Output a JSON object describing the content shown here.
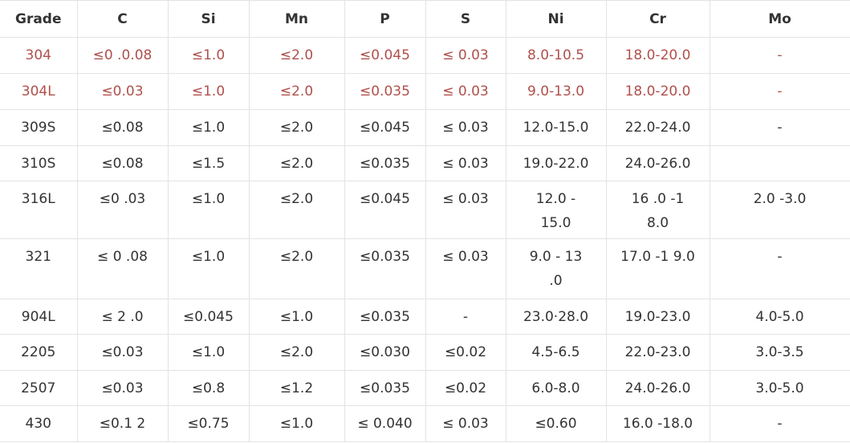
{
  "table": {
    "header": [
      "Grade",
      "C",
      "Si",
      "Mn",
      "P",
      "S",
      "Ni",
      "Cr",
      "Mo"
    ],
    "rows": [
      [
        "304",
        "≤0 .0.08",
        "≤1.0",
        "≤2.0",
        "≤0.045",
        "≤ 0.03",
        "8.0-10.5",
        "18.0-20.0",
        "-"
      ],
      [
        "304L",
        "≤0.03",
        "≤1.0",
        "≤2.0",
        "≤0.035",
        "≤ 0.03",
        "9.0-13.0",
        "18.0-20.0",
        "-"
      ],
      [
        "309S",
        "≤0.08",
        "≤1.0",
        "≤2.0",
        "≤0.045",
        "≤ 0.03",
        "12.0-15.0",
        "22.0-24.0",
        "-"
      ],
      [
        "310S",
        "≤0.08",
        "≤1.5",
        "≤2.0",
        "≤0.035",
        "≤ 0.03",
        "19.0-22.0",
        "24.0-26.0",
        null
      ],
      [
        "316L",
        "≤0 .03",
        "≤1.0",
        "≤2.0",
        "≤0.045",
        "≤ 0.03",
        [
          "12.0 -",
          "15.0"
        ],
        [
          "16 .0 -1",
          "8.0"
        ],
        "2.0 -3.0"
      ],
      [
        "321",
        "≤ 0 .08",
        "≤1.0",
        "≤2.0",
        "≤0.035",
        "≤ 0.03",
        [
          "9.0 - 13",
          ".0"
        ],
        "17.0 -1 9.0",
        "-"
      ],
      [
        "904L",
        "≤ 2 .0",
        "≤0.045",
        "≤1.0",
        "≤0.035",
        "-",
        "23.0·28.0",
        "19.0-23.0",
        "4.0-5.0"
      ],
      [
        "2205",
        "≤0.03",
        "≤1.0",
        "≤2.0",
        "≤0.030",
        "≤0.02",
        "4.5-6.5",
        "22.0-23.0",
        "3.0-3.5"
      ],
      [
        "2507",
        "≤0.03",
        "≤0.8",
        "≤1.2",
        "≤0.035",
        "≤0.02",
        "6.0-8.0",
        "24.0-26.0",
        "3.0-5.0"
      ],
      [
        "430",
        "≤0.1 2",
        "≤0.75",
        "≤1.0",
        "≤ 0.040",
        "≤ 0.03",
        "≤0.60",
        "16.0 -18.0",
        "-"
      ]
    ],
    "highlight_rows": [
      0,
      1
    ],
    "highlight_color": "#b0504c"
  }
}
